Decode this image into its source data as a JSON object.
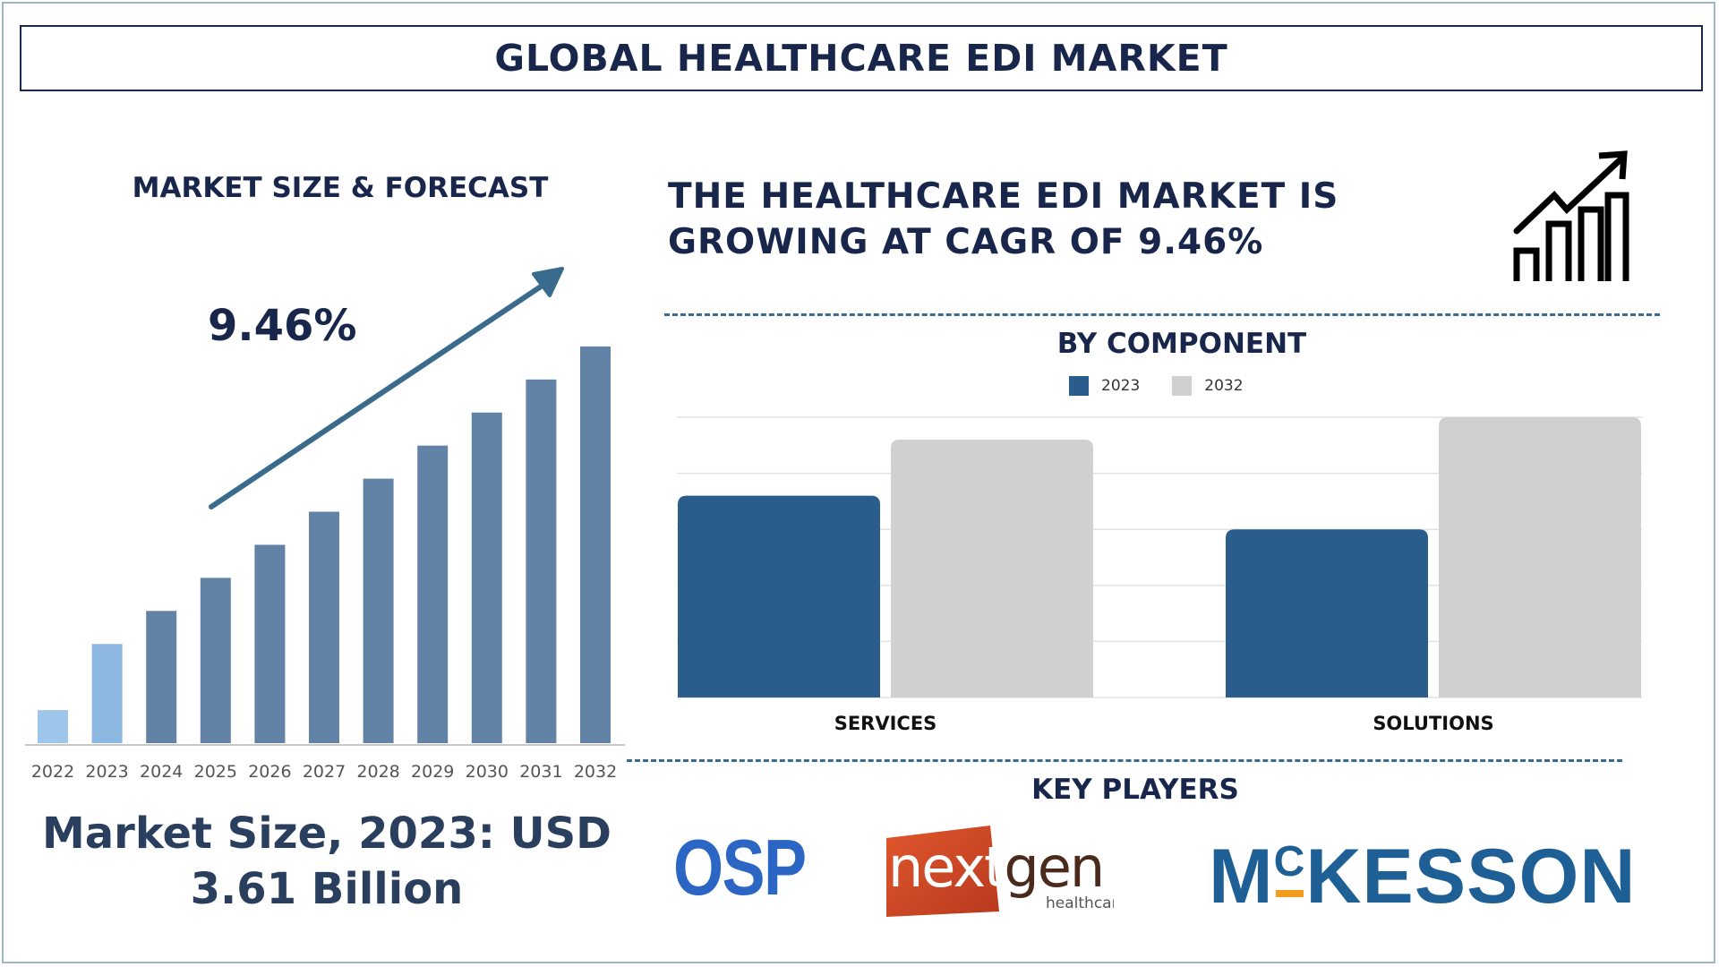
{
  "title": "GLOBAL HEALTHCARE EDI MARKET",
  "left_panel": {
    "heading": "MARKET SIZE & FORECAST",
    "cagr": "9.46%",
    "market_size_line1": "Market Size, 2023: USD",
    "market_size_line2": "3.61 Billion"
  },
  "headline": {
    "line1": "THE HEALTHCARE EDI MARKET IS",
    "line2": "GROWING AT CAGR OF 9.46%",
    "icon": "growth-chart-icon"
  },
  "component_heading": "BY COMPONENT",
  "key_players": {
    "heading": "KEY PLAYERS",
    "logos": [
      {
        "name": "osp-logo",
        "text": "OSP"
      },
      {
        "name": "nextgen-logo",
        "text": "nextgen",
        "sub": "healthcare"
      },
      {
        "name": "mckesson-logo",
        "text_pre": "M",
        "text_c": "C",
        "text_post": "KESSON"
      }
    ]
  },
  "colors": {
    "navy": "#17264a",
    "forecast_bar": "#6383a6",
    "highlight_bar_2023": "#8db8e2",
    "light_bar_2022": "#9ec6ea",
    "series_2023": "#2a5d8c",
    "series_2032": "#d0d0d0",
    "arrow": "#3a6a8c"
  },
  "chart_data": [
    {
      "type": "bar",
      "title": "MARKET SIZE & FORECAST",
      "categories": [
        "2022",
        "2023",
        "2024",
        "2025",
        "2026",
        "2027",
        "2028",
        "2029",
        "2030",
        "2031",
        "2032"
      ],
      "values": [
        1.0,
        3.0,
        4.0,
        5.0,
        6.0,
        7.0,
        8.0,
        9.0,
        10.0,
        11.0,
        12.0
      ],
      "annotation": "9.46%",
      "ylim": [
        0,
        13
      ],
      "grid": false
    },
    {
      "type": "bar",
      "title": "BY COMPONENT",
      "categories": [
        "SERVICES",
        "SOLUTIONS"
      ],
      "series": [
        {
          "name": "2023",
          "values": [
            3.6,
            3.0
          ]
        },
        {
          "name": "2032",
          "values": [
            4.6,
            5.0
          ]
        }
      ],
      "ylim": [
        0,
        5
      ],
      "grid": true,
      "legend": "top-center"
    }
  ]
}
